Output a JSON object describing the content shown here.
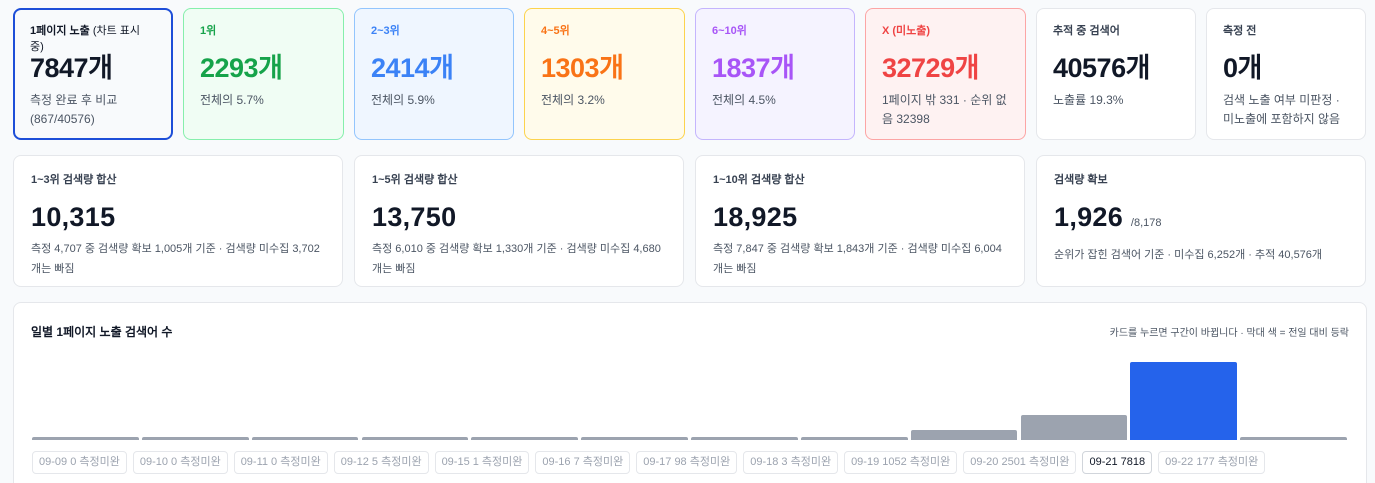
{
  "rank_cards": [
    {
      "label": "1페이지 노출",
      "label_paren": "(차트 표시 중)",
      "value": "7847개",
      "sub": "측정 완료 후 비교 (867/40576)"
    },
    {
      "label": "1위",
      "value": "2293개",
      "sub": "전체의 5.7%"
    },
    {
      "label": "2~3위",
      "value": "2414개",
      "sub": "전체의 5.9%"
    },
    {
      "label": "4~5위",
      "value": "1303개",
      "sub": "전체의 3.2%"
    },
    {
      "label": "6~10위",
      "value": "1837개",
      "sub": "전체의 4.5%"
    },
    {
      "label": "X (미노출)",
      "value": "32729개",
      "sub": "1페이지 밖 331 · 순위 없음 32398"
    },
    {
      "label": "추적 중 검색어",
      "value": "40576개",
      "sub": "노출률 19.3%"
    },
    {
      "label": "측정 전",
      "value": "0개",
      "sub": "검색 노출 여부 미판정 · 미노출에 포함하지 않음"
    }
  ],
  "volume_cards": [
    {
      "label": "1~3위 검색량 합산",
      "value": "10,315",
      "sub": "측정 4,707 중 검색량 확보 1,005개 기준 · 검색량 미수집 3,702개는 빠짐"
    },
    {
      "label": "1~5위 검색량 합산",
      "value": "13,750",
      "sub": "측정 6,010 중 검색량 확보 1,330개 기준 · 검색량 미수집 4,680개는 빠짐"
    },
    {
      "label": "1~10위 검색량 합산",
      "value": "18,925",
      "sub": "측정 7,847 중 검색량 확보 1,843개 기준 · 검색량 미수집 6,004개는 빠짐"
    },
    {
      "label": "검색량 확보",
      "value": "1,926",
      "value_small": "/8,178",
      "sub": "순위가 잡힌 검색어 기준 · 미수집 6,252개 · 추적 40,576개"
    }
  ],
  "chart": {
    "title": "일별 1페이지 노출 검색어 수",
    "hint": "카드를 누르면 구간이 바뀝니다 · 막대 색 = 전일 대비 등락"
  },
  "chart_data": {
    "type": "bar",
    "categories": [
      "09-09",
      "09-10",
      "09-11",
      "09-12",
      "09-15",
      "09-16",
      "09-17",
      "09-18",
      "09-19",
      "09-20",
      "09-21",
      "09-22"
    ],
    "values": [
      0,
      0,
      0,
      5,
      1,
      7,
      98,
      3,
      1052,
      2501,
      7818,
      177
    ],
    "chips": [
      "09-09 0 측정미완",
      "09-10 0 측정미완",
      "09-11 0 측정미완",
      "09-12 5 측정미완",
      "09-15 1 측정미완",
      "09-16 7 측정미완",
      "09-17 98 측정미완",
      "09-18 3 측정미완",
      "09-19 1052 측정미완",
      "09-20 2501 측정미완",
      "09-21 7818",
      "09-22 177 측정미완"
    ],
    "active_index": 10,
    "colors": {
      "neutral": "#9ca3af",
      "active": "#2563eb"
    }
  }
}
